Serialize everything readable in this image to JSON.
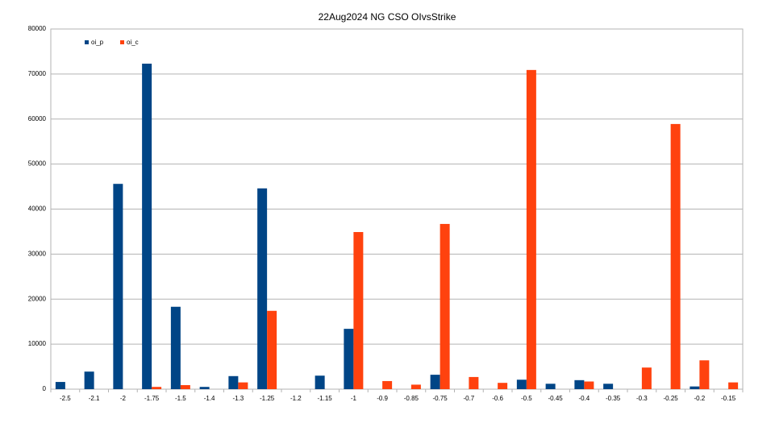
{
  "chart_data": {
    "type": "bar",
    "title": "22Aug2024 NG CSO OIvsStrike",
    "categories": [
      "-2.5",
      "-2.1",
      "-2",
      "-1.75",
      "-1.5",
      "-1.4",
      "-1.3",
      "-1.25",
      "-1.2",
      "-1.15",
      "-1",
      "-0.9",
      "-0.85",
      "-0.75",
      "-0.7",
      "-0.6",
      "-0.5",
      "-0.45",
      "-0.4",
      "-0.35",
      "-0.3",
      "-0.25",
      "-0.2",
      "-0.15"
    ],
    "series": [
      {
        "name": "oi_p",
        "color": "#004586",
        "values": [
          1600,
          3900,
          45600,
          72300,
          18300,
          500,
          2900,
          44600,
          0,
          3000,
          13400,
          0,
          0,
          3200,
          0,
          0,
          2100,
          1200,
          2000,
          1200,
          0,
          0,
          600,
          0
        ]
      },
      {
        "name": "oi_c",
        "color": "#ff420e",
        "values": [
          0,
          0,
          0,
          500,
          900,
          0,
          1500,
          17400,
          0,
          0,
          34900,
          1800,
          1000,
          36700,
          2700,
          1400,
          70900,
          0,
          1700,
          0,
          4800,
          58900,
          6400,
          1500
        ]
      }
    ],
    "ylim": [
      0,
      80000
    ],
    "yticks": [
      0,
      10000,
      20000,
      30000,
      40000,
      50000,
      60000,
      70000,
      80000
    ],
    "grid": true,
    "legend": "top-left"
  }
}
